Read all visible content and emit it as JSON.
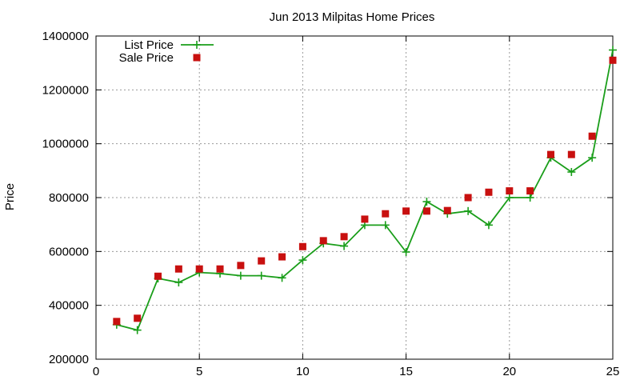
{
  "chart_data": {
    "type": "line",
    "title": "Jun 2013 Milpitas Home Prices",
    "xlabel": "",
    "ylabel": "Price",
    "xlim": [
      0,
      25
    ],
    "ylim": [
      200000,
      1400000
    ],
    "xticks": [
      0,
      5,
      10,
      15,
      20,
      25
    ],
    "yticks": [
      200000,
      400000,
      600000,
      800000,
      1000000,
      1200000,
      1400000
    ],
    "grid": true,
    "legend_position": "top-left",
    "series": [
      {
        "name": "List Price",
        "style": "lines+points",
        "color": "#1a9e1a",
        "x": [
          1,
          2,
          3,
          4,
          5,
          6,
          7,
          8,
          9,
          10,
          11,
          12,
          13,
          14,
          15,
          16,
          17,
          18,
          19,
          20,
          21,
          22,
          23,
          24,
          25
        ],
        "values": [
          328000,
          308000,
          500000,
          485000,
          522000,
          518000,
          510000,
          510000,
          502000,
          568000,
          630000,
          620000,
          698000,
          698000,
          598000,
          785000,
          740000,
          750000,
          698000,
          800000,
          800000,
          948000,
          895000,
          948000,
          1348000
        ]
      },
      {
        "name": "Sale Price",
        "style": "points",
        "color": "#c8100f",
        "x": [
          1,
          2,
          3,
          4,
          5,
          6,
          7,
          8,
          9,
          10,
          11,
          12,
          13,
          14,
          15,
          16,
          17,
          18,
          19,
          20,
          21,
          22,
          23,
          24,
          25
        ],
        "values": [
          340000,
          352000,
          508000,
          535000,
          535000,
          535000,
          548000,
          565000,
          580000,
          618000,
          640000,
          655000,
          720000,
          740000,
          750000,
          750000,
          752000,
          800000,
          820000,
          825000,
          825000,
          960000,
          960000,
          1028000,
          1310000
        ]
      }
    ]
  }
}
